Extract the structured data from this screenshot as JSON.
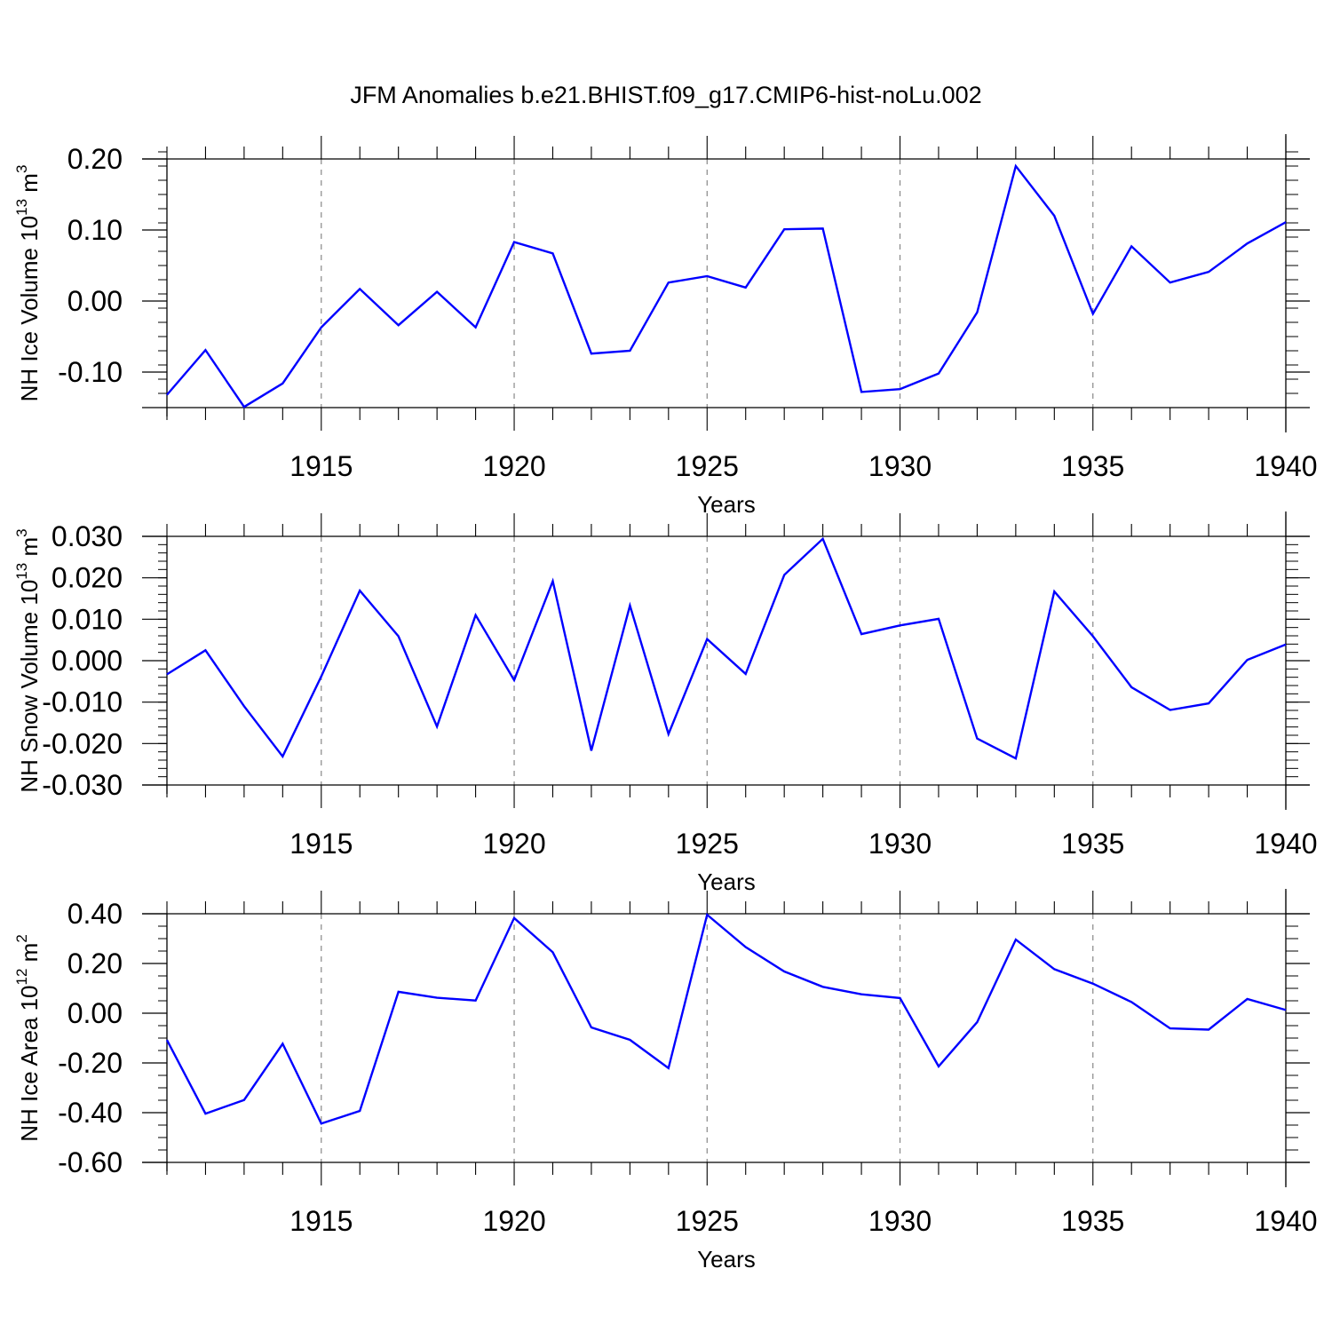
{
  "figure": {
    "title": "JFM Anomalies b.e21.BHIST.f09_g17.CMIP6-hist-noLu.002"
  },
  "chart_data": [
    {
      "type": "line",
      "id": "ice-volume",
      "xlabel": "Years",
      "ylabel": {
        "main": "NH Ice Volume 10",
        "exp": "13",
        "unit": " m",
        "unit_exp": "3"
      },
      "xlim": [
        1911,
        1940
      ],
      "ylim": [
        -0.15,
        0.2
      ],
      "xticks": [
        1915,
        1920,
        1925,
        1930,
        1935,
        1940
      ],
      "yticks": [
        -0.1,
        0.0,
        0.1,
        0.2
      ],
      "ytick_labels": [
        "-0.10",
        "0.00",
        "0.10",
        "0.20"
      ],
      "yminor_step": 0.02,
      "series_color": "#0000ff",
      "x": [
        1911,
        1912,
        1913,
        1914,
        1915,
        1916,
        1917,
        1918,
        1919,
        1920,
        1921,
        1922,
        1923,
        1924,
        1925,
        1926,
        1927,
        1928,
        1929,
        1930,
        1931,
        1932,
        1933,
        1934,
        1935,
        1936,
        1937,
        1938,
        1939,
        1940
      ],
      "values": [
        -0.132,
        -0.069,
        -0.149,
        -0.116,
        -0.037,
        0.017,
        -0.034,
        0.013,
        -0.037,
        0.083,
        0.067,
        -0.074,
        -0.07,
        0.026,
        0.035,
        0.019,
        0.101,
        0.102,
        -0.128,
        -0.124,
        -0.102,
        -0.016,
        0.19,
        0.12,
        -0.018,
        0.077,
        0.026,
        0.041,
        0.081,
        0.111
      ]
    },
    {
      "type": "line",
      "id": "snow-volume",
      "xlabel": "Years",
      "ylabel": {
        "main": "NH Snow Volume 10",
        "exp": "13",
        "unit": " m",
        "unit_exp": "3"
      },
      "xlim": [
        1911,
        1940
      ],
      "ylim": [
        -0.03,
        0.03
      ],
      "xticks": [
        1915,
        1920,
        1925,
        1930,
        1935,
        1940
      ],
      "yticks": [
        -0.03,
        -0.02,
        -0.01,
        0.0,
        0.01,
        0.02,
        0.03
      ],
      "ytick_labels": [
        "-0.030",
        "-0.020",
        "-0.010",
        "0.000",
        "0.010",
        "0.020",
        "0.030"
      ],
      "yminor_step": 0.002,
      "series_color": "#0000ff",
      "x": [
        1911,
        1912,
        1913,
        1914,
        1915,
        1916,
        1917,
        1918,
        1919,
        1920,
        1921,
        1922,
        1923,
        1924,
        1925,
        1926,
        1927,
        1928,
        1929,
        1930,
        1931,
        1932,
        1933,
        1934,
        1935,
        1936,
        1937,
        1938,
        1939,
        1940
      ],
      "values": [
        -0.0033,
        0.0025,
        -0.011,
        -0.0231,
        -0.0038,
        0.0169,
        0.0059,
        -0.0159,
        0.011,
        -0.0047,
        0.0192,
        -0.0217,
        0.0133,
        -0.0177,
        0.0052,
        -0.0032,
        0.0207,
        0.0294,
        0.0064,
        0.0085,
        0.0101,
        -0.0188,
        -0.0236,
        0.0167,
        0.0059,
        -0.0064,
        -0.0119,
        -0.0103,
        0.0002,
        0.0039
      ]
    },
    {
      "type": "line",
      "id": "ice-area",
      "xlabel": "Years",
      "ylabel": {
        "main": "NH Ice Area 10",
        "exp": "12",
        "unit": " m",
        "unit_exp": "2"
      },
      "xlim": [
        1911,
        1940
      ],
      "ylim": [
        -0.6,
        0.4
      ],
      "xticks": [
        1915,
        1920,
        1925,
        1930,
        1935,
        1940
      ],
      "yticks": [
        -0.6,
        -0.4,
        -0.2,
        0.0,
        0.2,
        0.4
      ],
      "ytick_labels": [
        "-0.60",
        "-0.40",
        "-0.20",
        "0.00",
        "0.20",
        "0.40"
      ],
      "yminor_step": 0.05,
      "series_color": "#0000ff",
      "x": [
        1911,
        1912,
        1913,
        1914,
        1915,
        1916,
        1917,
        1918,
        1919,
        1920,
        1921,
        1922,
        1923,
        1924,
        1925,
        1926,
        1927,
        1928,
        1929,
        1930,
        1931,
        1932,
        1933,
        1934,
        1935,
        1936,
        1937,
        1938,
        1939,
        1940
      ],
      "values": [
        -0.108,
        -0.404,
        -0.349,
        -0.123,
        -0.444,
        -0.393,
        0.086,
        0.062,
        0.051,
        0.383,
        0.245,
        -0.057,
        -0.107,
        -0.221,
        0.396,
        0.266,
        0.168,
        0.106,
        0.076,
        0.061,
        -0.214,
        -0.036,
        0.296,
        0.177,
        0.119,
        0.045,
        -0.061,
        -0.066,
        0.057,
        0.013
      ]
    }
  ]
}
